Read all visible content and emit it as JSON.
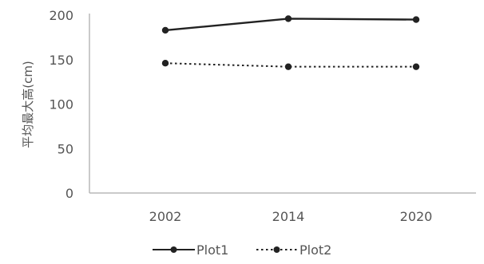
{
  "chart_data": {
    "type": "line",
    "categories": [
      "2002",
      "2014",
      "2020"
    ],
    "series": [
      {
        "name": "Plot1",
        "values": [
          183,
          196,
          195
        ],
        "style": "solid",
        "color": "#222222"
      },
      {
        "name": "Plot2",
        "values": [
          146,
          142,
          142
        ],
        "style": "dotted",
        "color": "#222222"
      }
    ],
    "ylabel": "平均最大高(cm)",
    "xlabel": "",
    "ylim": [
      0,
      200
    ],
    "yticks": [
      0,
      50,
      100,
      150,
      200
    ],
    "grid": false,
    "legend_position": "bottom"
  }
}
